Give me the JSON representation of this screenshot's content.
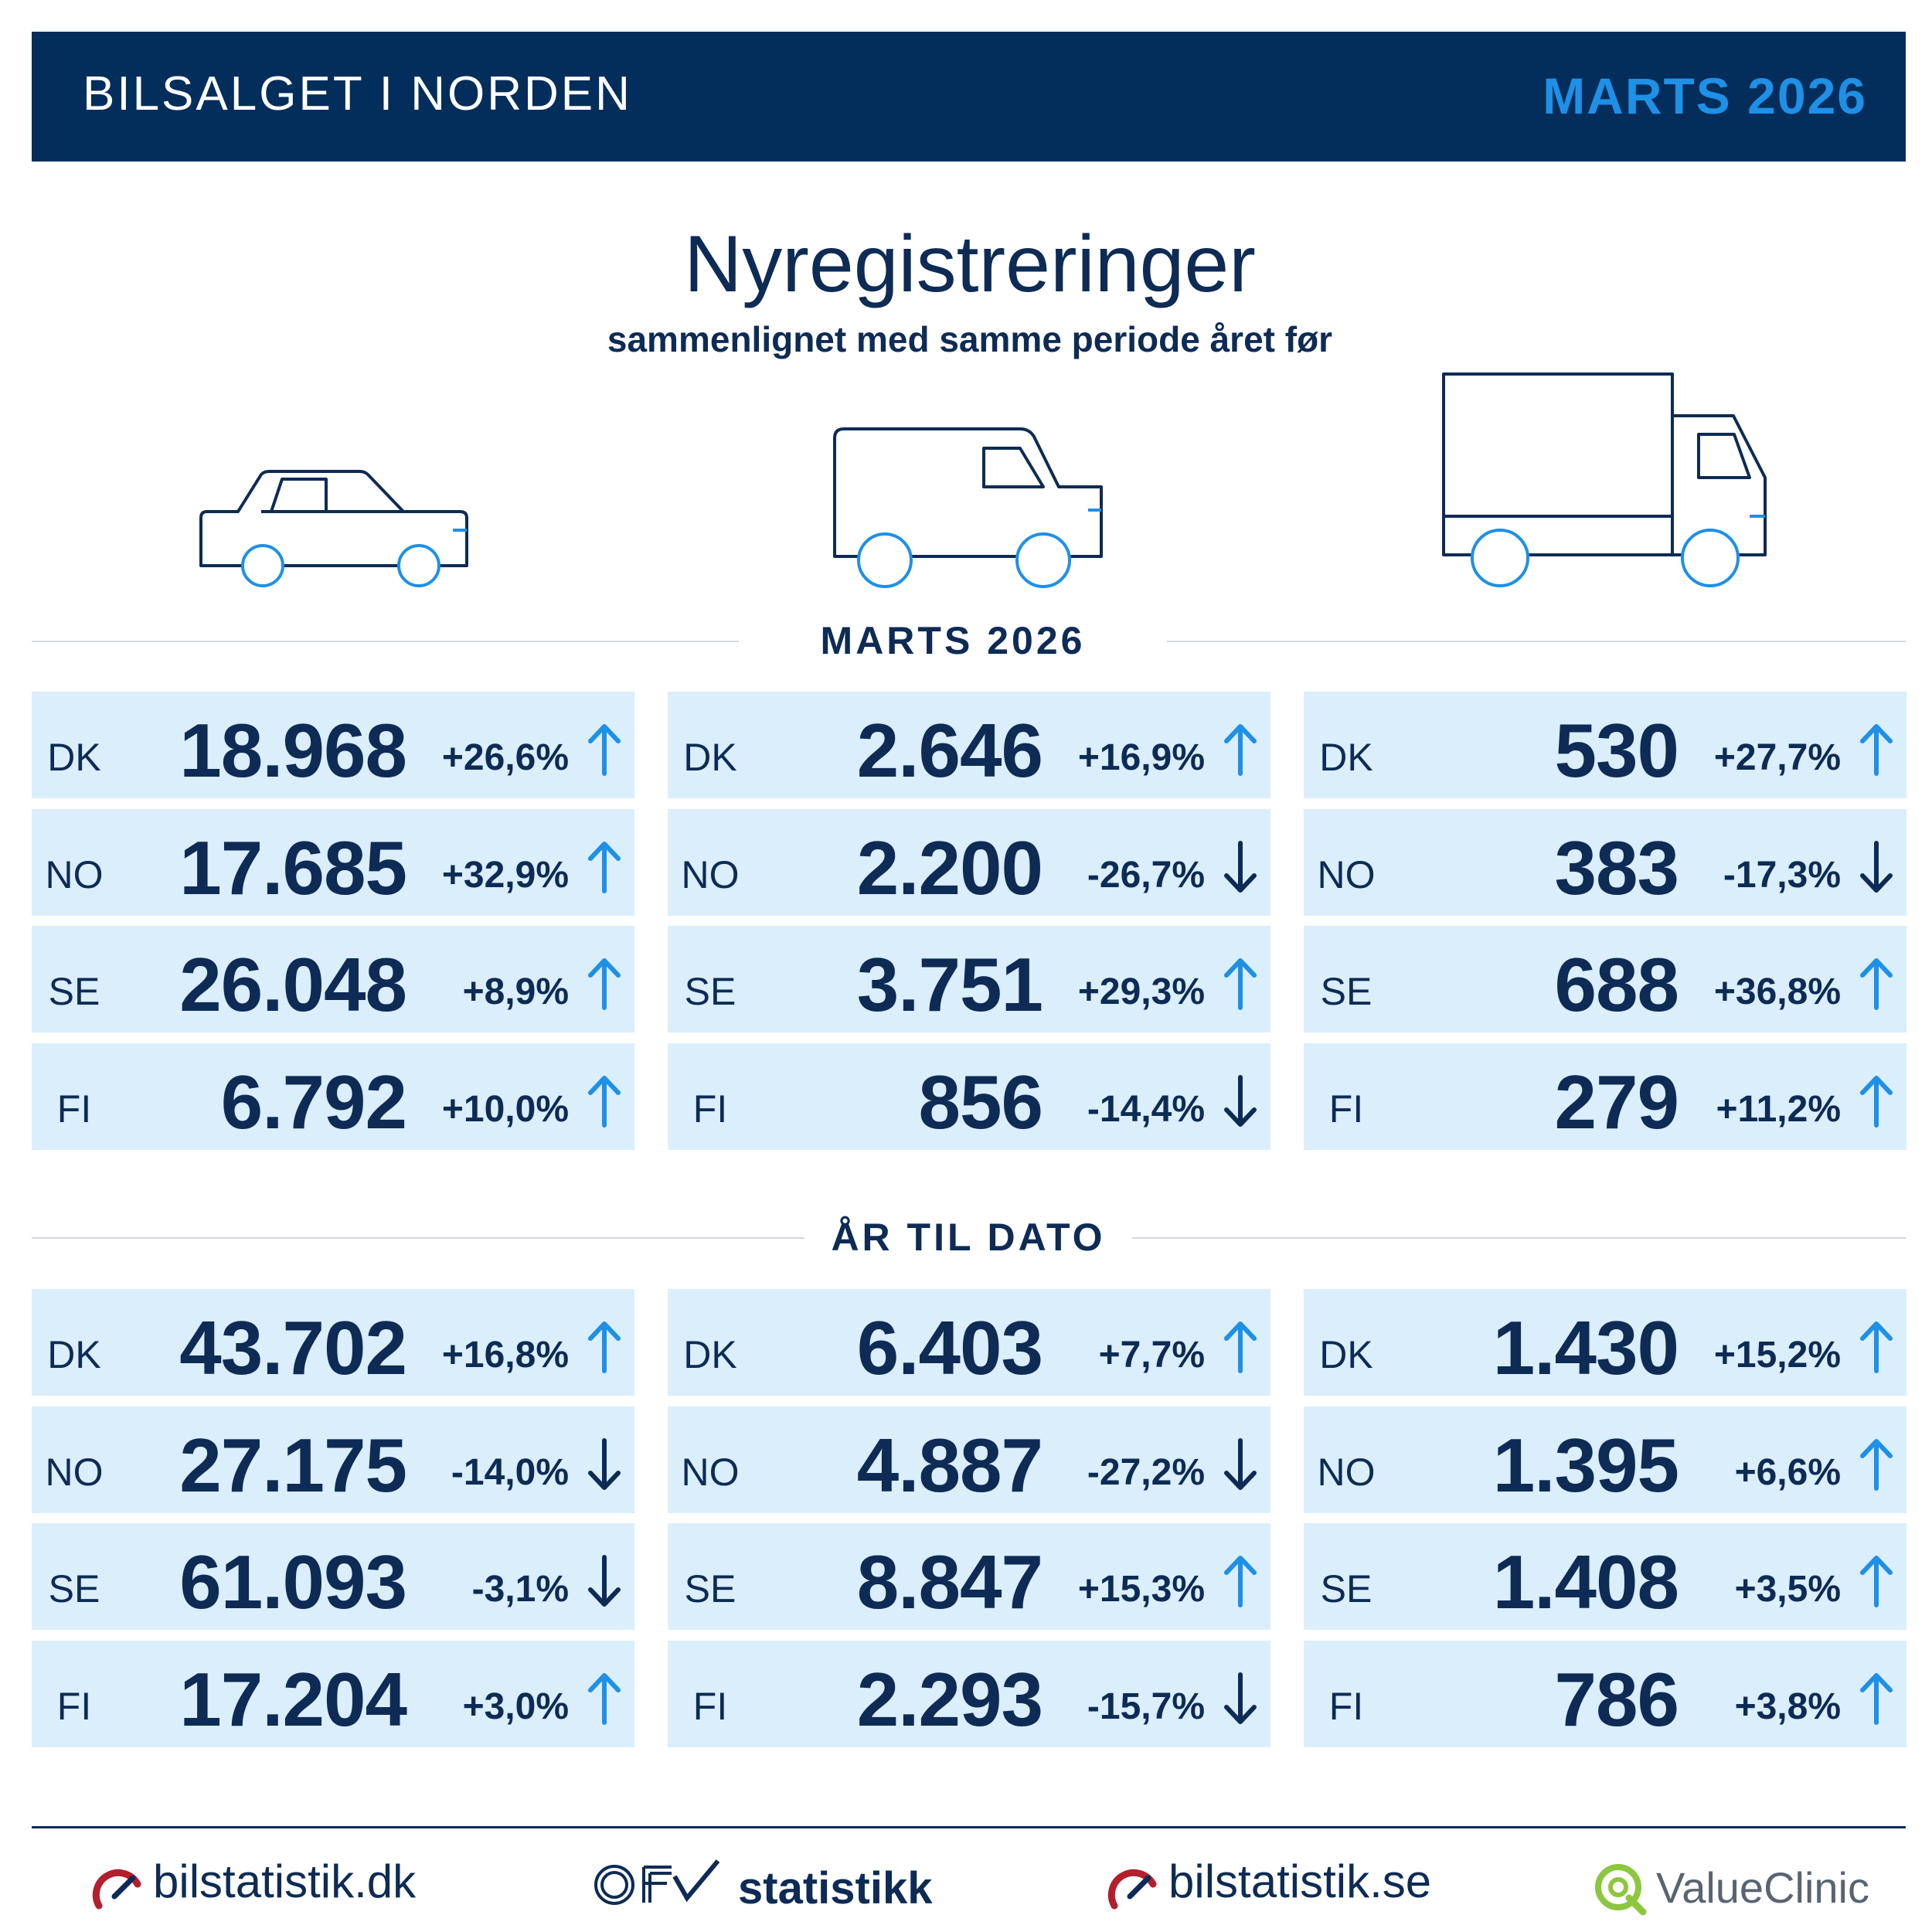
{
  "header": {
    "left": "BILSALGET I NORDEN",
    "right": "MARTS 2026"
  },
  "title": "Nyregistreringer",
  "subtitle": "sammenlignet med samme periode året før",
  "icons": [
    "car-icon",
    "van-icon",
    "truck-icon"
  ],
  "sections": [
    {
      "label": "MARTS 2026",
      "columns": [
        [
          {
            "cc": "DK",
            "value": "18.968",
            "pct": "+26,6%",
            "trend": "up"
          },
          {
            "cc": "NO",
            "value": "17.685",
            "pct": "+32,9%",
            "trend": "up"
          },
          {
            "cc": "SE",
            "value": "26.048",
            "pct": "+8,9%",
            "trend": "up"
          },
          {
            "cc": "FI",
            "value": "6.792",
            "pct": "+10,0%",
            "trend": "up"
          }
        ],
        [
          {
            "cc": "DK",
            "value": "2.646",
            "pct": "+16,9%",
            "trend": "up"
          },
          {
            "cc": "NO",
            "value": "2.200",
            "pct": "-26,7%",
            "trend": "down"
          },
          {
            "cc": "SE",
            "value": "3.751",
            "pct": "+29,3%",
            "trend": "up"
          },
          {
            "cc": "FI",
            "value": "856",
            "pct": "-14,4%",
            "trend": "down"
          }
        ],
        [
          {
            "cc": "DK",
            "value": "530",
            "pct": "+27,7%",
            "trend": "up"
          },
          {
            "cc": "NO",
            "value": "383",
            "pct": "-17,3%",
            "trend": "down"
          },
          {
            "cc": "SE",
            "value": "688",
            "pct": "+36,8%",
            "trend": "up"
          },
          {
            "cc": "FI",
            "value": "279",
            "pct": "+11,2%",
            "trend": "up"
          }
        ]
      ]
    },
    {
      "label": "ÅR TIL DATO",
      "columns": [
        [
          {
            "cc": "DK",
            "value": "43.702",
            "pct": "+16,8%",
            "trend": "up"
          },
          {
            "cc": "NO",
            "value": "27.175",
            "pct": "-14,0%",
            "trend": "down"
          },
          {
            "cc": "SE",
            "value": "61.093",
            "pct": "-3,1%",
            "trend": "down"
          },
          {
            "cc": "FI",
            "value": "17.204",
            "pct": "+3,0%",
            "trend": "up"
          }
        ],
        [
          {
            "cc": "DK",
            "value": "6.403",
            "pct": "+7,7%",
            "trend": "up"
          },
          {
            "cc": "NO",
            "value": "4.887",
            "pct": "-27,2%",
            "trend": "down"
          },
          {
            "cc": "SE",
            "value": "8.847",
            "pct": "+15,3%",
            "trend": "up"
          },
          {
            "cc": "FI",
            "value": "2.293",
            "pct": "-15,7%",
            "trend": "down"
          }
        ],
        [
          {
            "cc": "DK",
            "value": "1.430",
            "pct": "+15,2%",
            "trend": "up"
          },
          {
            "cc": "NO",
            "value": "1.395",
            "pct": "+6,6%",
            "trend": "up"
          },
          {
            "cc": "SE",
            "value": "1.408",
            "pct": "+3,5%",
            "trend": "up"
          },
          {
            "cc": "FI",
            "value": "786",
            "pct": "+3,8%",
            "trend": "up"
          }
        ]
      ]
    }
  ],
  "footer": {
    "logos": [
      {
        "text": "bilstatistik.dk",
        "icon": "gauge-icon"
      },
      {
        "text": "statistikk",
        "icon": "ofv-logo-icon"
      },
      {
        "text": "bilstatistik.se",
        "icon": "gauge-icon"
      },
      {
        "text": "ValueClinic",
        "icon": "valueclinic-q-icon"
      }
    ]
  },
  "colors": {
    "navy": "#032d5a",
    "text": "#0d2b54",
    "accent": "#1e90e6",
    "row_bg": "#dbeefc",
    "down_arrow": "#0d2b54",
    "up_arrow": "#1e90e6",
    "red": "#b21f2d",
    "green": "#8dc63f"
  }
}
